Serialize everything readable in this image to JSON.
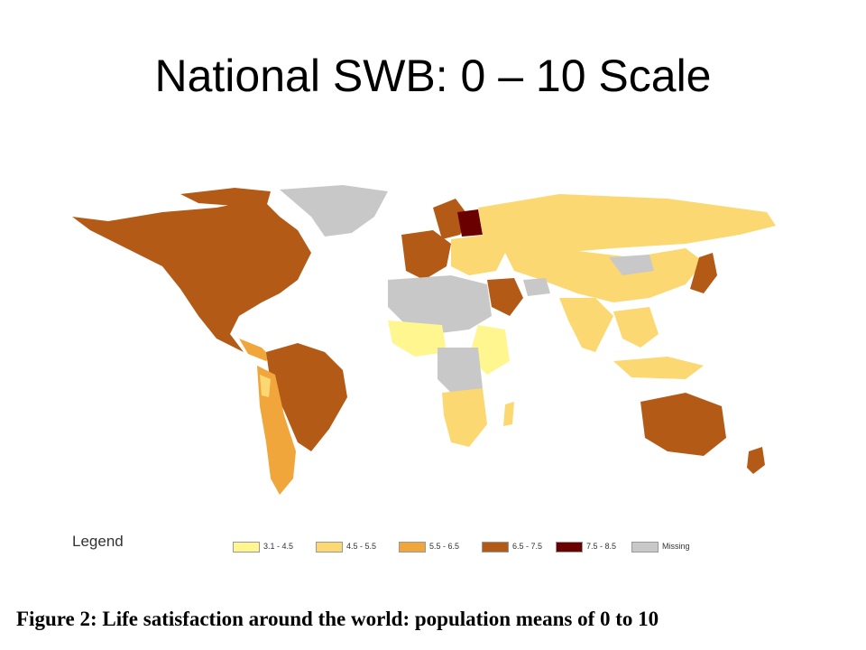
{
  "slide": {
    "title": "National SWB: 0 – 10 Scale"
  },
  "legend": {
    "title": "Legend",
    "items": [
      {
        "label": "3.1 - 4.5",
        "color": "#FFF68F"
      },
      {
        "label": "4.5 - 5.5",
        "color": "#FCD873"
      },
      {
        "label": "5.5 - 6.5",
        "color": "#F0A63A"
      },
      {
        "label": "6.5 - 7.5",
        "color": "#B45A17"
      },
      {
        "label": "7.5 - 8.5",
        "color": "#6B0000"
      },
      {
        "label": "Missing",
        "color": "#C8C8C8"
      }
    ]
  },
  "caption": "Figure 2: Life satisfaction around the world: population means of 0 to 10"
}
